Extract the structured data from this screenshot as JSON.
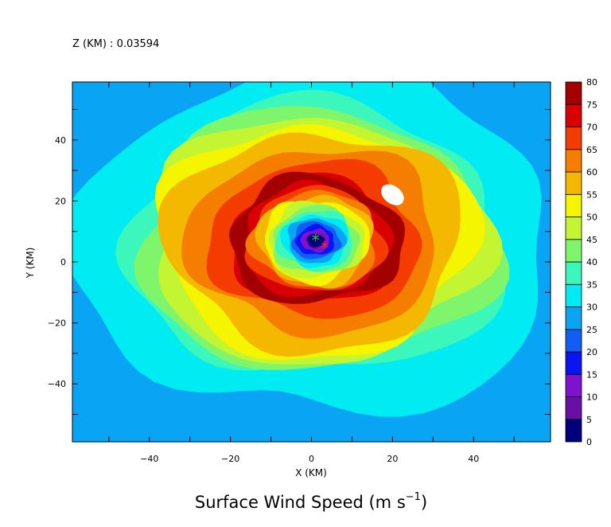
{
  "chart_data": {
    "type": "heatmap",
    "header": "Z (KM) : 0.03594",
    "title_main": "Surface Wind Speed (m s",
    "title_sup": "−1",
    "title_close": ")",
    "xlabel": "X (KM)",
    "ylabel": "Y (KM)",
    "xlim": [
      -59,
      59
    ],
    "ylim": [
      -59,
      59
    ],
    "xticks": [
      -40,
      -20,
      0,
      20,
      40
    ],
    "yticks": [
      -40,
      -20,
      0,
      20,
      40
    ],
    "colorbar": {
      "levels": [
        0,
        5,
        10,
        15,
        20,
        25,
        30,
        35,
        40,
        45,
        50,
        55,
        60,
        65,
        70,
        75,
        80
      ],
      "colors": [
        "#00007a",
        "#6a0fa5",
        "#7e12cf",
        "#0a14f4",
        "#125ef5",
        "#0aa4f5",
        "#00ecf2",
        "#3cf7bb",
        "#7ef56a",
        "#c4f532",
        "#f6f500",
        "#f5b800",
        "#f57d00",
        "#f53c00",
        "#d80000",
        "#a30000"
      ]
    },
    "storm": {
      "center": [
        1,
        7
      ],
      "rmw_x": 8,
      "rmw_y": 10,
      "max_speed_point": [
        20,
        22
      ],
      "max_speed_note": "above 80"
    },
    "markers": [
      {
        "x": 1,
        "y": 7,
        "symbol": "*",
        "color": "#22cc22"
      },
      {
        "x": 3.3,
        "y": 4.6,
        "symbol": "*",
        "color": "#ff2222"
      }
    ]
  }
}
